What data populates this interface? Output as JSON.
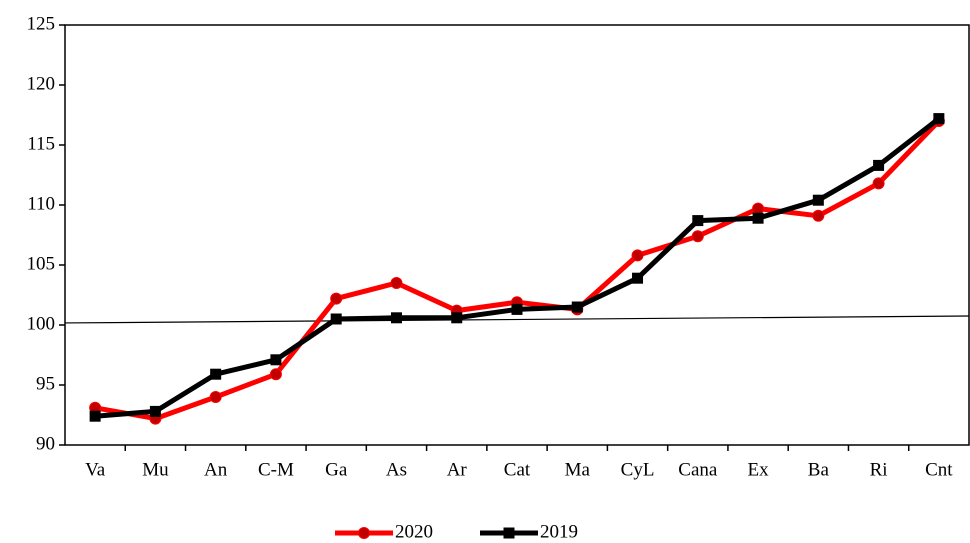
{
  "chart_data": {
    "type": "line",
    "categories": [
      "Va",
      "Mu",
      "An",
      "C-M",
      "Ga",
      "As",
      "Ar",
      "Cat",
      "Ma",
      "CyL",
      "Cana",
      "Ex",
      "Ba",
      "Ri",
      "Cnt"
    ],
    "series": [
      {
        "name": "2020",
        "color": "#ff0000",
        "marker_color": "#c00000",
        "marker": "circle",
        "values": [
          93.1,
          92.2,
          94.0,
          95.9,
          102.2,
          103.5,
          101.2,
          101.9,
          101.3,
          105.8,
          107.4,
          109.7,
          109.1,
          111.8,
          117.0
        ]
      },
      {
        "name": "2019",
        "color": "#000000",
        "marker_color": "#000000",
        "marker": "square",
        "values": [
          92.4,
          92.8,
          95.9,
          97.1,
          100.5,
          100.6,
          100.6,
          101.3,
          101.5,
          103.9,
          108.7,
          108.9,
          110.4,
          113.3,
          117.2
        ]
      }
    ],
    "trend_line": [
      100.17,
      100.75
    ],
    "ylim": [
      90,
      125
    ],
    "yticks": [
      90,
      95,
      100,
      105,
      110,
      115,
      120,
      125
    ],
    "legend": "bottom"
  }
}
